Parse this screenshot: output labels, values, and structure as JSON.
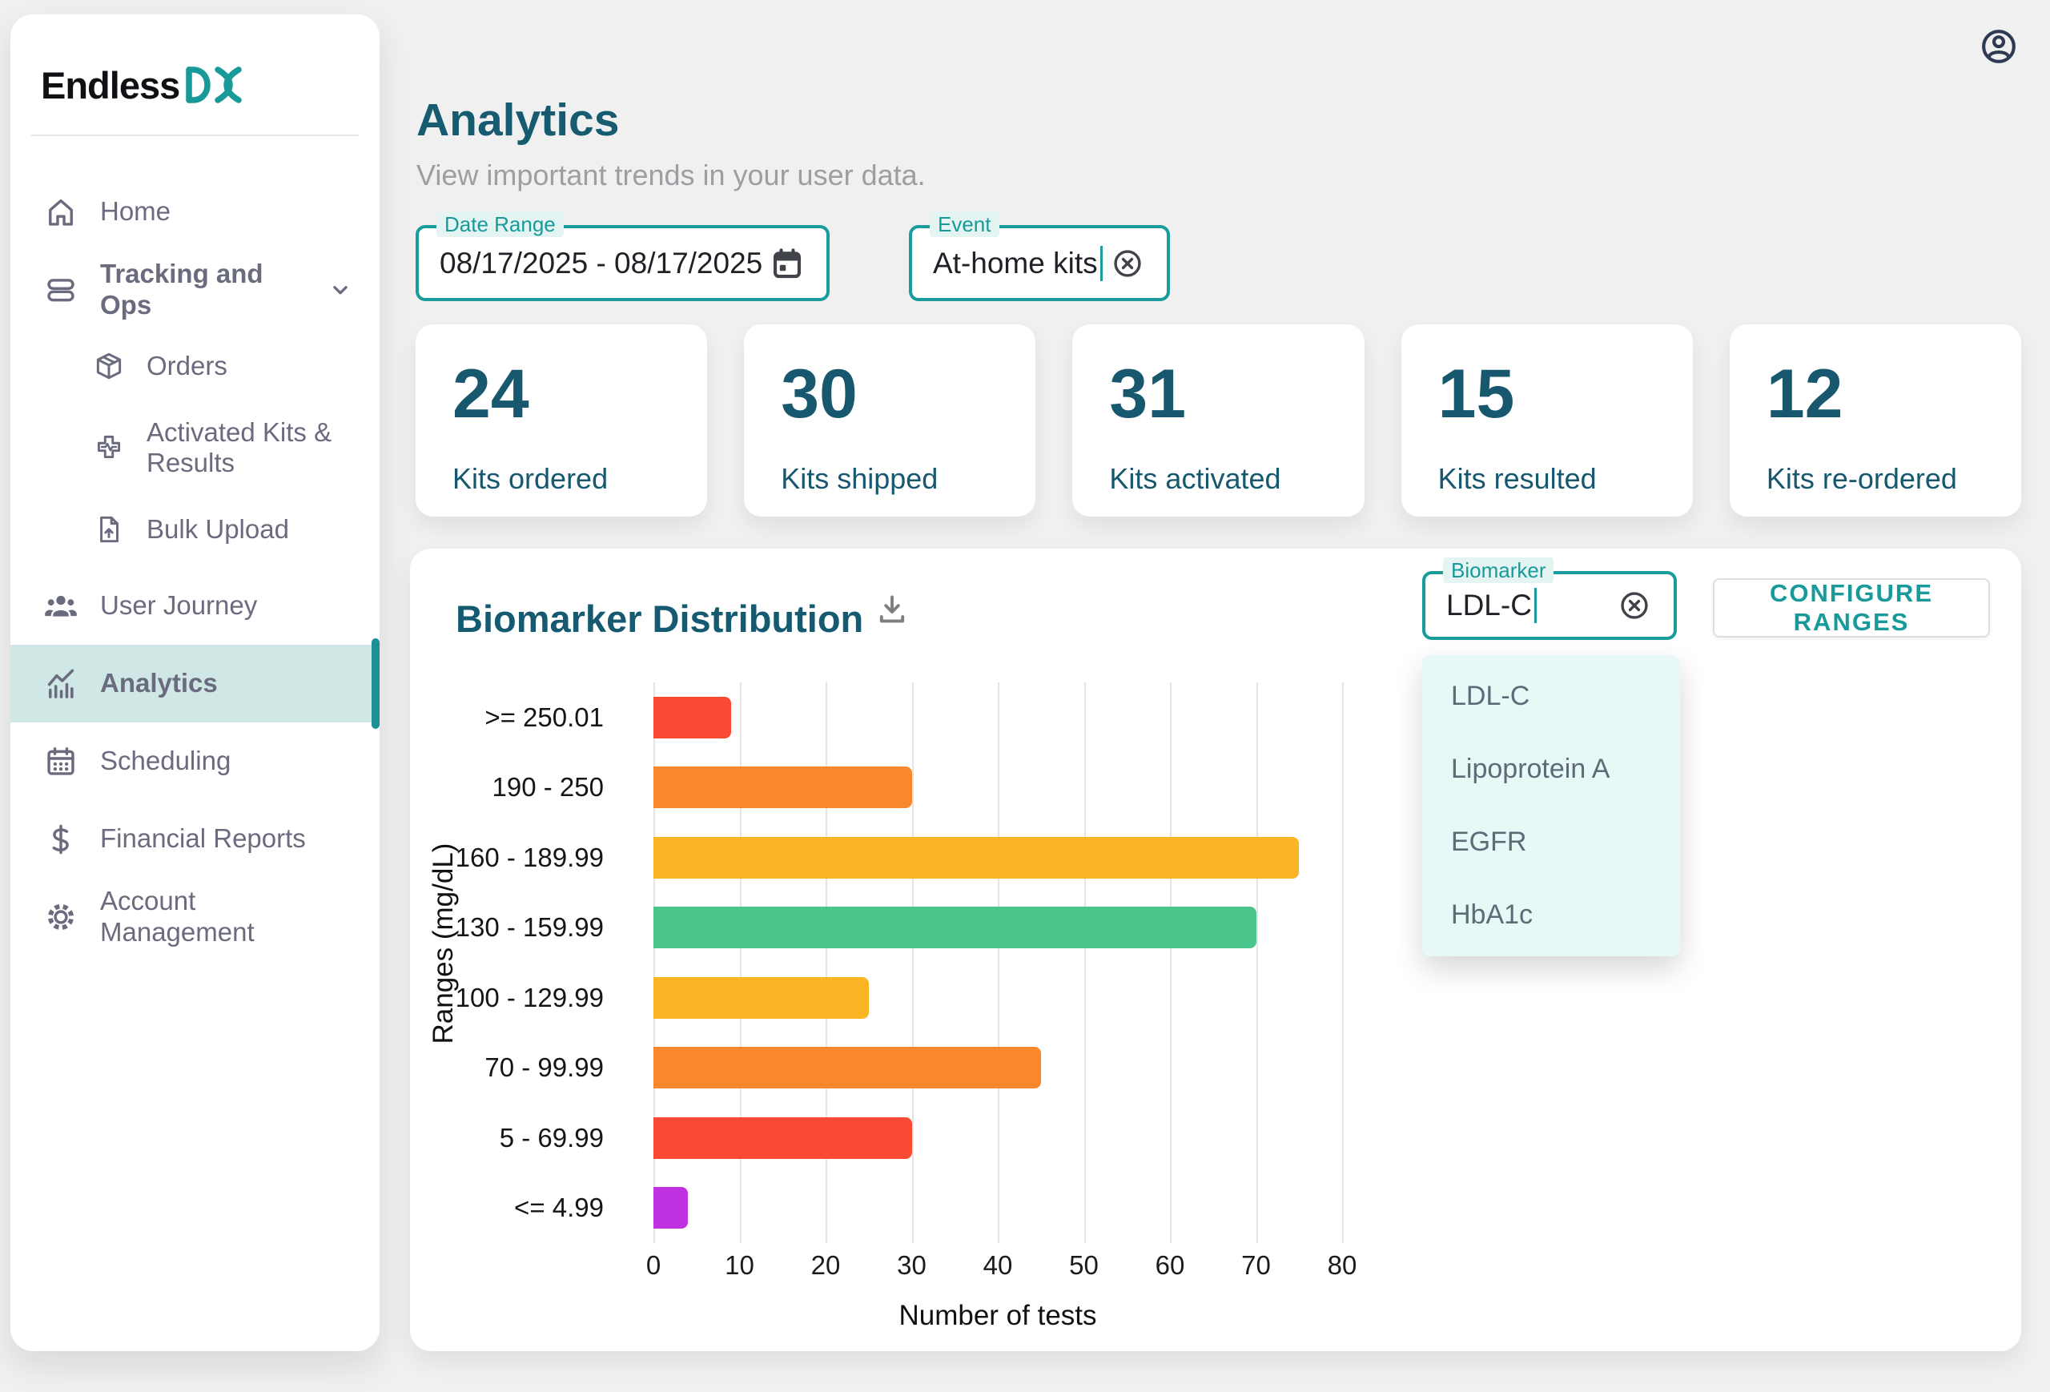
{
  "header": {
    "title": "Analytics",
    "subtitle": "View important trends in your user data."
  },
  "sidebar": {
    "logo_text": "Endless",
    "logo_mark": "DX",
    "items": [
      {
        "label": "Home",
        "icon": "home",
        "level": 0
      },
      {
        "label": "Tracking and Ops",
        "icon": "rows",
        "level": 0,
        "bold": true,
        "chevron": true
      },
      {
        "label": "Orders",
        "icon": "package",
        "level": 1
      },
      {
        "label": "Activated Kits & Results",
        "icon": "medical-cross",
        "level": 1
      },
      {
        "label": "Bulk Upload",
        "icon": "file-upload",
        "level": 1
      },
      {
        "label": "User Journey",
        "icon": "people",
        "level": 0
      },
      {
        "label": "Analytics",
        "icon": "chart",
        "level": 0,
        "active": true,
        "bold": true
      },
      {
        "label": "Scheduling",
        "icon": "calendar",
        "level": 0
      },
      {
        "label": "Financial Reports",
        "icon": "dollar",
        "level": 0
      },
      {
        "label": "Account Management",
        "icon": "gear",
        "level": 0
      }
    ]
  },
  "topbar": {
    "user_icon": "account-circle"
  },
  "filters": {
    "date_range": {
      "label": "Date Range",
      "value": "08/17/2025 - 08/17/2025",
      "icon": "calendar-filled"
    },
    "event": {
      "label": "Event",
      "value": "At-home kits",
      "icon": "clear-circle-x"
    }
  },
  "stats": [
    {
      "value": "24",
      "label": "Kits ordered"
    },
    {
      "value": "30",
      "label": "Kits shipped"
    },
    {
      "value": "31",
      "label": "Kits activated"
    },
    {
      "value": "15",
      "label": "Kits resulted"
    },
    {
      "value": "12",
      "label": "Kits re-ordered"
    }
  ],
  "biomarker_panel": {
    "title": "Biomarker Distribution",
    "download_icon": "download",
    "field_label": "Biomarker",
    "field_value": "LDL-C",
    "clear_icon": "clear-circle-x",
    "configure_button": "CONFIGURE RANGES",
    "dropdown_options": [
      "LDL-C",
      "Lipoprotein A",
      "EGFR",
      "HbA1c"
    ]
  },
  "chart_data": {
    "type": "bar",
    "orientation": "horizontal",
    "title": "Biomarker Distribution",
    "categories": [
      ">= 250.01",
      "190 - 250",
      "160 - 189.99",
      "130 - 159.99",
      "100 - 129.99",
      "70 - 99.99",
      "5 - 69.99",
      "<= 4.99"
    ],
    "values": [
      9,
      30,
      75,
      70,
      25,
      45,
      30,
      4
    ],
    "bar_colors": [
      "#fa4a33",
      "#f9882c",
      "#fbb424",
      "#4ac58c",
      "#fbb424",
      "#f9882c",
      "#fa4a33",
      "#c031e2"
    ],
    "xlabel": "Number of tests",
    "ylabel": "Ranges (mg/dL)",
    "xlim": [
      0,
      80
    ],
    "xticks": [
      0,
      10,
      20,
      30,
      40,
      50,
      60,
      70,
      80
    ],
    "grid": true,
    "legend": false
  },
  "colors": {
    "accent_teal": "#1a9c9c",
    "dark_teal": "#175b70",
    "sidebar_text": "#6a6b7e",
    "selected_item_bg": "#cfe8e6",
    "page_bg": "#f0f0f1",
    "dropdown_bg": "#e8f8f6"
  }
}
